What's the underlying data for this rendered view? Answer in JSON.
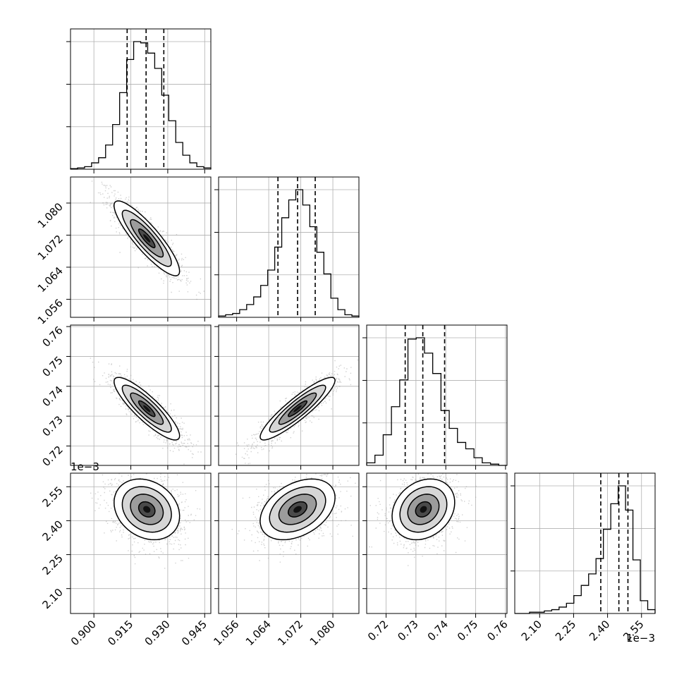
{
  "chart_data": {
    "type": "corner",
    "grid": true,
    "parameters": [
      {
        "range": [
          0.8905,
          0.9475
        ],
        "ticks": [
          0.9,
          0.915,
          0.93,
          0.945
        ],
        "tick_labels": [
          "0.900",
          "0.915",
          "0.930",
          "0.945"
        ],
        "quantiles": [
          0.9135,
          0.9212,
          0.9284
        ],
        "hist": [
          0.5,
          1,
          2,
          5,
          9,
          19,
          35,
          60,
          86,
          100,
          99,
          91,
          79,
          58,
          38,
          21,
          11,
          5,
          2,
          1
        ]
      },
      {
        "range": [
          1.0515,
          1.0865
        ],
        "ticks": [
          1.056,
          1.064,
          1.072,
          1.08
        ],
        "tick_labels": [
          "1.056",
          "1.064",
          "1.072",
          "1.080"
        ],
        "quantiles": [
          1.0663,
          1.0712,
          1.0756
        ],
        "hist": [
          1,
          2,
          3,
          6,
          10,
          16,
          25,
          37,
          55,
          78,
          92,
          100,
          88,
          71,
          51,
          34,
          15,
          6,
          2,
          1
        ]
      },
      {
        "range": [
          0.7135,
          0.7605
        ],
        "ticks": [
          0.72,
          0.73,
          0.74,
          0.75,
          0.76
        ],
        "tick_labels": [
          "0.72",
          "0.73",
          "0.74",
          "0.75",
          "0.76"
        ],
        "quantiles": [
          0.7264,
          0.7323,
          0.7396
        ],
        "hist": [
          2,
          8,
          24,
          46,
          67,
          99,
          100,
          88,
          72,
          43,
          29,
          18,
          13,
          6,
          2,
          1,
          0
        ]
      },
      {
        "range": [
          1.99,
          2.61
        ],
        "ticks": [
          2.1,
          2.25,
          2.4,
          2.55
        ],
        "tick_labels": [
          "2.10",
          "2.25",
          "2.40",
          "2.55"
        ],
        "quantiles": [
          2.37,
          2.45,
          2.49
        ],
        "offset_label_x": "1e−3",
        "offset_label_y": "1e−3",
        "hist": [
          0,
          0,
          1,
          1,
          2,
          3,
          5,
          8,
          14,
          22,
          31,
          43,
          66,
          86,
          100,
          81,
          42,
          10,
          3
        ]
      }
    ],
    "pairs": [
      {
        "row": 1,
        "col": 0,
        "x_center": 0.9215,
        "y_center": 1.0712,
        "cov": [
          [
            4.43e-05,
            -2.72e-05
          ],
          [
            -2.72e-05,
            2.18e-05
          ]
        ]
      },
      {
        "row": 2,
        "col": 0,
        "x_center": 0.9215,
        "y_center": 0.7325,
        "cov": [
          [
            4.43e-05,
            -3.02e-05
          ],
          [
            -3.02e-05,
            2.75e-05
          ]
        ]
      },
      {
        "row": 2,
        "col": 1,
        "x_center": 1.0712,
        "y_center": 0.7325,
        "cov": [
          [
            2.18e-05,
            2.21e-05
          ],
          [
            2.21e-05,
            2.75e-05
          ]
        ]
      },
      {
        "row": 3,
        "col": 0,
        "x_center": 0.9215,
        "y_center": 2.45,
        "cov": [
          [
            4.43e-05,
            -0.0001
          ],
          [
            -0.0001,
            0.0045
          ]
        ]
      },
      {
        "row": 3,
        "col": 1,
        "x_center": 1.0712,
        "y_center": 2.45,
        "cov": [
          [
            2.18e-05,
            0.00012
          ],
          [
            0.00012,
            0.0045
          ]
        ]
      },
      {
        "row": 3,
        "col": 2,
        "x_center": 0.7325,
        "y_center": 2.45,
        "cov": [
          [
            2.75e-05,
            8e-05
          ],
          [
            8e-05,
            0.0045
          ]
        ]
      }
    ]
  }
}
